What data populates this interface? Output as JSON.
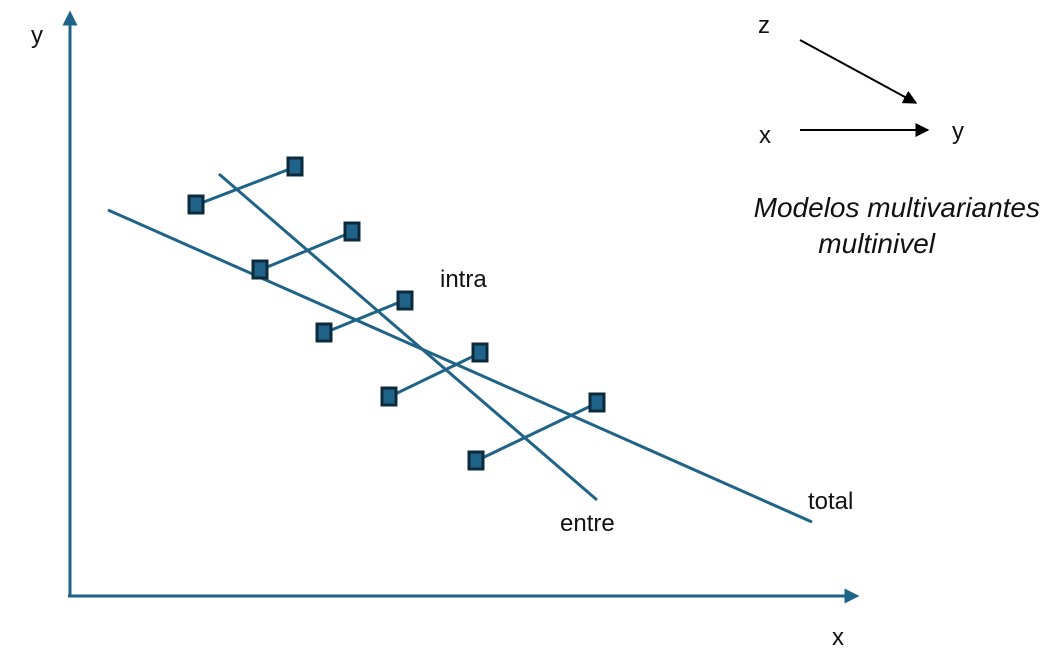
{
  "axes": {
    "y_label": "y",
    "x_label": "x",
    "color": "#1F6389"
  },
  "lines": {
    "intra_label": "intra",
    "entre_label": "entre",
    "total_label": "total",
    "color": "#1F6389"
  },
  "markers": {
    "count": 10,
    "fill": "#1F6389",
    "border": "#0D2A3C"
  },
  "causal_diagram": {
    "z_label": "z",
    "x_label": "x",
    "y_label": "y",
    "arrow_color": "#000000"
  },
  "caption": {
    "line1": "Modelos multivariantes",
    "line2": "multinivel"
  }
}
